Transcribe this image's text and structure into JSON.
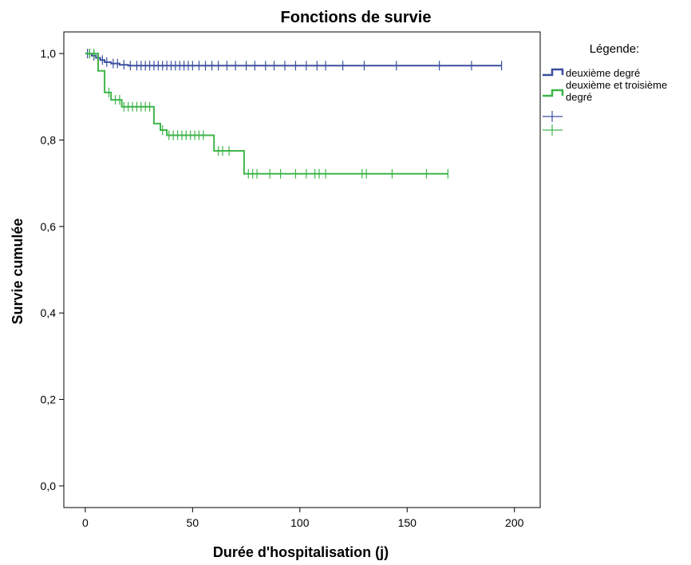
{
  "chart_data": {
    "type": "line",
    "title": "Fonctions de survie",
    "xlabel": "Durée d'hospitalisation (j)",
    "ylabel": "Survie cumulée",
    "xlim": [
      -10,
      212
    ],
    "ylim": [
      -0.05,
      1.05
    ],
    "x_ticks": [
      0,
      50,
      100,
      150,
      200
    ],
    "x_tick_labels": [
      "0",
      "50",
      "100",
      "150",
      "200"
    ],
    "y_ticks": [
      0.0,
      0.2,
      0.4,
      0.6,
      0.8,
      1.0
    ],
    "y_tick_labels": [
      "0,0",
      "0,2",
      "0,4",
      "0,6",
      "0,8",
      "1,0"
    ],
    "grid": false,
    "legend": {
      "title": "Légende:",
      "placement": "right",
      "entries": [
        {
          "label": "deuxième degré",
          "kind": "step",
          "color": "#3b4fa0"
        },
        {
          "label": "deuxième et troisième degré",
          "kind": "step",
          "color": "#3fb54a"
        },
        {
          "label": "",
          "kind": "censored",
          "color": "#3b4fa0"
        },
        {
          "label": "",
          "kind": "censored",
          "color": "#3fb54a"
        }
      ]
    },
    "series": [
      {
        "name": "deuxième degré",
        "color": "#3b4fa0",
        "x": [
          0,
          3,
          5,
          7,
          9,
          12,
          16,
          20,
          194
        ],
        "y": [
          1.0,
          0.995,
          0.99,
          0.985,
          0.98,
          0.977,
          0.974,
          0.972,
          0.972
        ],
        "censored_x": [
          1,
          2,
          4,
          6,
          8,
          10,
          13,
          15,
          18,
          21,
          24,
          26,
          28,
          30,
          32,
          34,
          36,
          38,
          40,
          42,
          44,
          46,
          48,
          50,
          53,
          56,
          59,
          62,
          66,
          70,
          75,
          79,
          84,
          88,
          93,
          98,
          103,
          108,
          112,
          120,
          130,
          145,
          165,
          180,
          194
        ]
      },
      {
        "name": "deuxième et troisième degré",
        "color": "#3fb54a",
        "x": [
          0,
          6,
          9,
          12,
          17,
          32,
          35,
          38,
          60,
          74,
          169
        ],
        "y": [
          1.0,
          0.96,
          0.91,
          0.893,
          0.877,
          0.838,
          0.823,
          0.811,
          0.775,
          0.722,
          0.722
        ],
        "censored_x": [
          2,
          4,
          11,
          14,
          16,
          18,
          20,
          22,
          24,
          26,
          28,
          30,
          36,
          39,
          41,
          43,
          45,
          47,
          49,
          51,
          53,
          55,
          62,
          64,
          67,
          76,
          78,
          80,
          86,
          91,
          98,
          103,
          107,
          109,
          112,
          129,
          131,
          143,
          159,
          169
        ]
      }
    ]
  }
}
